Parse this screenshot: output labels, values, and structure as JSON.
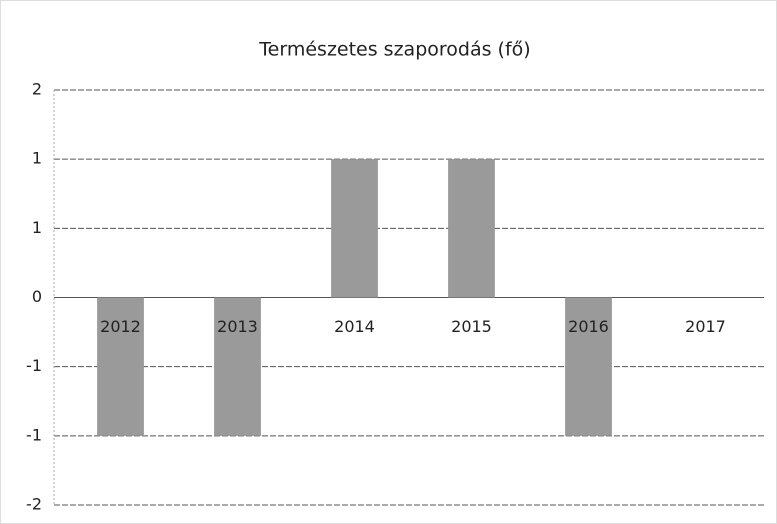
{
  "chart_data": {
    "type": "bar",
    "title": "Természetes szaporodás (fő)",
    "categories": [
      "2012",
      "2013",
      "2014",
      "2015",
      "2016",
      "2017"
    ],
    "values": [
      -1,
      -1,
      1,
      1,
      -1,
      0
    ],
    "color": "#9a9a9a",
    "ylim": [
      -1.5,
      1.5
    ],
    "yticks": [
      {
        "value": -1.5,
        "label": "-2"
      },
      -1,
      {
        "value": -0.5,
        "label": "-1"
      },
      0,
      {
        "value": 0.5,
        "label": "1"
      },
      1,
      {
        "value": 1.5,
        "label": "2"
      }
    ],
    "grid": true
  }
}
